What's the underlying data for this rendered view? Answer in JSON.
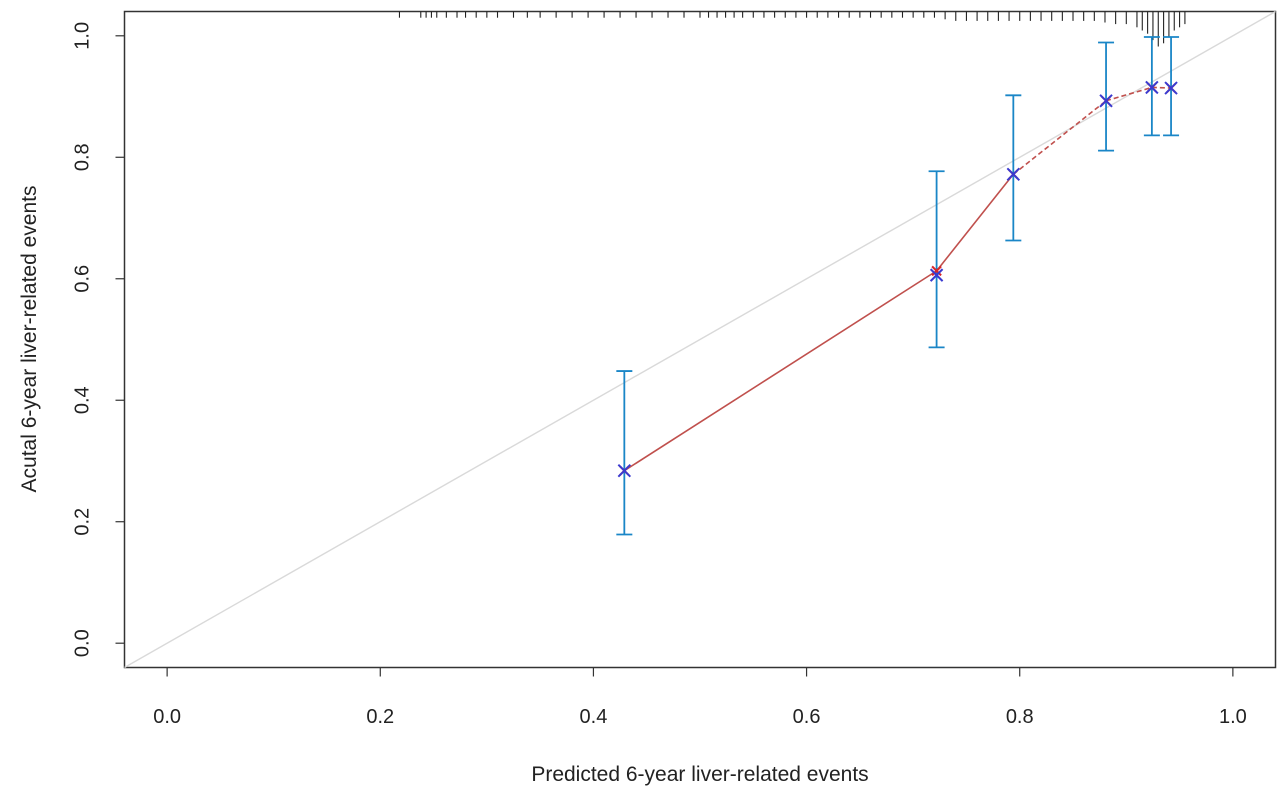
{
  "chart_data": {
    "type": "line",
    "xlabel": "Predicted 6-year liver-related events",
    "ylabel": "Acutal 6-year liver-related events",
    "xlim": [
      -0.04,
      1.04
    ],
    "ylim": [
      -0.04,
      1.04
    ],
    "x_ticks": [
      0.0,
      0.2,
      0.4,
      0.6,
      0.8,
      1.0
    ],
    "y_ticks": [
      0.0,
      0.2,
      0.4,
      0.6,
      0.8,
      1.0
    ],
    "x_tick_labels": [
      "0.0",
      "0.2",
      "0.4",
      "0.6",
      "0.8",
      "1.0"
    ],
    "y_tick_labels": [
      "0.0",
      "0.2",
      "0.4",
      "0.6",
      "0.8",
      "1.0"
    ],
    "grid": false,
    "reference_line": {
      "from": [
        0,
        0
      ],
      "to": [
        1,
        1
      ],
      "color": "#d9d9d9"
    },
    "series": [
      {
        "x": [
          0.429,
          0.722,
          0.794,
          0.881,
          0.924,
          0.942
        ],
        "y": [
          0.284,
          0.613,
          0.772,
          0.893,
          0.915,
          0.914
        ],
        "color": "#c0504d",
        "line_style": "solid-then-dashed",
        "marker": "x-red"
      },
      {
        "x": [
          0.429,
          0.722,
          0.794,
          0.881,
          0.924,
          0.942
        ],
        "y": [
          0.284,
          0.606,
          0.772,
          0.893,
          0.915,
          0.914
        ],
        "y_lower": [
          0.179,
          0.487,
          0.663,
          0.811,
          0.836,
          0.836
        ],
        "y_upper": [
          0.448,
          0.777,
          0.902,
          0.989,
          0.998,
          0.998
        ],
        "color": "#1a86c7",
        "marker": "x-blue"
      }
    ],
    "rug": {
      "positions": [
        0.218,
        0.238,
        0.243,
        0.248,
        0.253,
        0.262,
        0.272,
        0.28,
        0.29,
        0.3,
        0.31,
        0.325,
        0.338,
        0.35,
        0.365,
        0.38,
        0.395,
        0.41,
        0.425,
        0.44,
        0.455,
        0.47,
        0.485,
        0.5,
        0.508,
        0.516,
        0.524,
        0.532,
        0.54,
        0.55,
        0.56,
        0.57,
        0.58,
        0.59,
        0.6,
        0.61,
        0.62,
        0.63,
        0.64,
        0.65,
        0.66,
        0.67,
        0.68,
        0.69,
        0.7,
        0.71,
        0.72,
        0.73,
        0.74,
        0.75,
        0.76,
        0.77,
        0.78,
        0.79,
        0.8,
        0.81,
        0.82,
        0.83,
        0.84,
        0.85,
        0.86,
        0.87,
        0.88,
        0.89,
        0.9,
        0.91,
        0.915,
        0.92,
        0.925,
        0.93,
        0.935,
        0.94,
        0.945,
        0.95,
        0.955
      ],
      "heights": [
        1,
        1,
        1,
        1,
        1,
        1,
        1,
        1,
        1,
        1,
        1,
        1,
        1,
        1,
        1,
        1,
        1,
        1,
        1,
        1,
        1,
        1,
        1,
        1,
        1,
        1,
        1,
        1,
        1,
        1,
        1,
        1,
        1,
        1,
        1,
        1,
        1,
        1,
        1,
        1,
        1,
        1,
        1,
        1,
        1,
        1,
        1,
        1.5,
        2,
        2,
        2,
        2,
        2,
        2,
        2,
        2,
        2,
        2,
        2,
        2,
        2,
        2,
        2.5,
        3,
        3,
        4,
        5,
        6,
        8,
        10,
        9,
        7,
        5,
        4,
        3
      ]
    }
  }
}
